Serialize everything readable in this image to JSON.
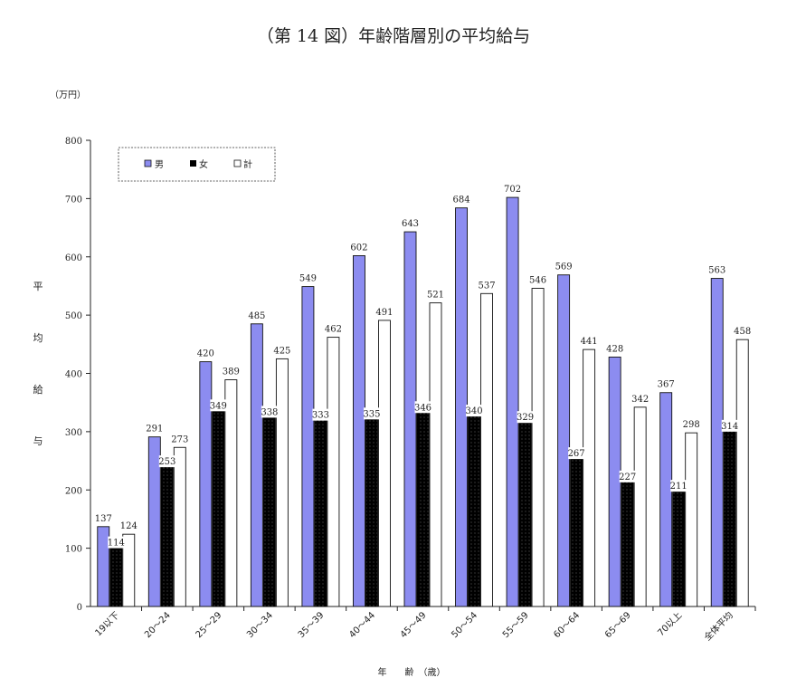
{
  "chart_data": {
    "type": "bar",
    "title": "（第 14 図）年齢階層別の平均給与",
    "unit_label": "（万円）",
    "ylabel_chars": [
      "平",
      "均",
      "給",
      "与"
    ],
    "xlabel": "年　　齢　（歳）",
    "ylim": [
      0,
      800
    ],
    "yticks": [
      0,
      100,
      200,
      300,
      400,
      500,
      600,
      700,
      800
    ],
    "legend_position": "top-left",
    "categories": [
      "19以下",
      "20～24",
      "25～29",
      "30～34",
      "35～39",
      "40～44",
      "45～49",
      "50～54",
      "55～59",
      "60～64",
      "65～69",
      "70以上",
      "全体平均"
    ],
    "series": [
      {
        "name": "男",
        "color": "#8c8cf0",
        "pattern": "solid",
        "values": [
          137,
          291,
          420,
          485,
          549,
          602,
          643,
          684,
          702,
          569,
          428,
          367,
          563
        ]
      },
      {
        "name": "女",
        "color": "#000000",
        "pattern": "dotted",
        "values": [
          114,
          253,
          349,
          338,
          333,
          335,
          346,
          340,
          329,
          267,
          227,
          211,
          314
        ]
      },
      {
        "name": "計",
        "color": "#ffffff",
        "pattern": "outline",
        "values": [
          124,
          273,
          389,
          425,
          462,
          491,
          521,
          537,
          546,
          441,
          342,
          298,
          458
        ]
      }
    ]
  }
}
